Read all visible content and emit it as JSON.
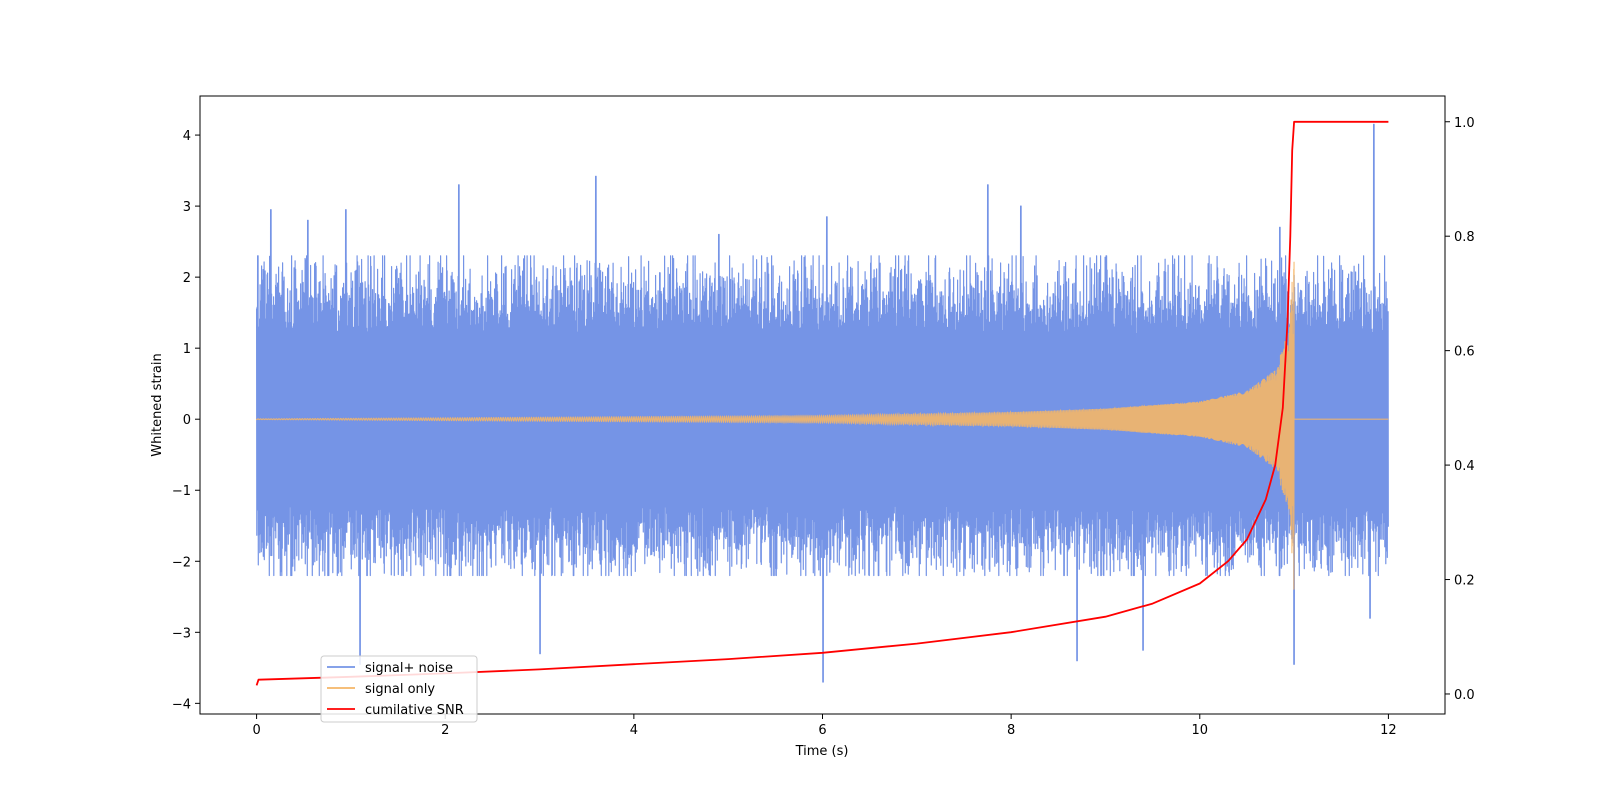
{
  "chart_data": {
    "type": "line",
    "title": "",
    "xlabel": "Time (s)",
    "ylabel": "Whitened strain",
    "y2label": "",
    "xlim": [
      -0.6,
      12.6
    ],
    "ylim": [
      -4.15,
      4.55
    ],
    "y2lim": [
      -0.035,
      1.045
    ],
    "xticks": [
      0,
      2,
      4,
      6,
      8,
      10,
      12
    ],
    "yticks": [
      -4,
      -3,
      -2,
      -1,
      0,
      1,
      2,
      3,
      4
    ],
    "y2ticks": [
      0.0,
      0.2,
      0.4,
      0.6,
      0.8,
      1.0
    ],
    "y2tick_labels": [
      "0.0",
      "0.2",
      "0.4",
      "0.6",
      "0.8",
      "1.0"
    ],
    "grid": false,
    "legend_position": "lower-left",
    "series": [
      {
        "name": "signal+ noise",
        "axis": "left",
        "color": "#7594e6",
        "kind": "noise",
        "x_range": [
          0,
          12
        ],
        "envelope": [
          -2.2,
          2.3
        ],
        "spikes": [
          [
            0.15,
            2.95
          ],
          [
            0.55,
            2.8
          ],
          [
            0.95,
            2.95
          ],
          [
            1.1,
            -3.45
          ],
          [
            2.15,
            3.3
          ],
          [
            3.0,
            -3.3
          ],
          [
            3.6,
            3.42
          ],
          [
            4.9,
            2.6
          ],
          [
            6.0,
            -3.7
          ],
          [
            6.05,
            2.85
          ],
          [
            7.75,
            3.3
          ],
          [
            8.1,
            3.0
          ],
          [
            8.7,
            -3.4
          ],
          [
            9.4,
            -3.25
          ],
          [
            10.85,
            2.7
          ],
          [
            11.0,
            -3.45
          ],
          [
            11.85,
            4.15
          ],
          [
            11.8,
            -2.8
          ]
        ]
      },
      {
        "name": "signal only",
        "axis": "left",
        "color": "#f5b667",
        "kind": "chirp",
        "x_range": [
          0,
          11.0
        ],
        "amplitude_points": [
          [
            0,
            0.005
          ],
          [
            6,
            0.05
          ],
          [
            8,
            0.1
          ],
          [
            9,
            0.15
          ],
          [
            10,
            0.25
          ],
          [
            10.5,
            0.4
          ],
          [
            10.8,
            0.7
          ],
          [
            10.95,
            1.3
          ],
          [
            11.0,
            2.45
          ]
        ]
      },
      {
        "name": "cumilative SNR",
        "axis": "right",
        "color": "#ff0000",
        "kind": "line",
        "points": [
          [
            0,
            0.015
          ],
          [
            0.02,
            0.025
          ],
          [
            1,
            0.03
          ],
          [
            2,
            0.036
          ],
          [
            3,
            0.043
          ],
          [
            4,
            0.052
          ],
          [
            5,
            0.061
          ],
          [
            6,
            0.072
          ],
          [
            7,
            0.088
          ],
          [
            8,
            0.108
          ],
          [
            9,
            0.135
          ],
          [
            9.5,
            0.158
          ],
          [
            10,
            0.193
          ],
          [
            10.3,
            0.232
          ],
          [
            10.5,
            0.27
          ],
          [
            10.7,
            0.34
          ],
          [
            10.8,
            0.4
          ],
          [
            10.88,
            0.5
          ],
          [
            10.93,
            0.65
          ],
          [
            10.96,
            0.8
          ],
          [
            10.98,
            0.95
          ],
          [
            11.0,
            1.0
          ],
          [
            12,
            1.0
          ]
        ]
      }
    ]
  }
}
